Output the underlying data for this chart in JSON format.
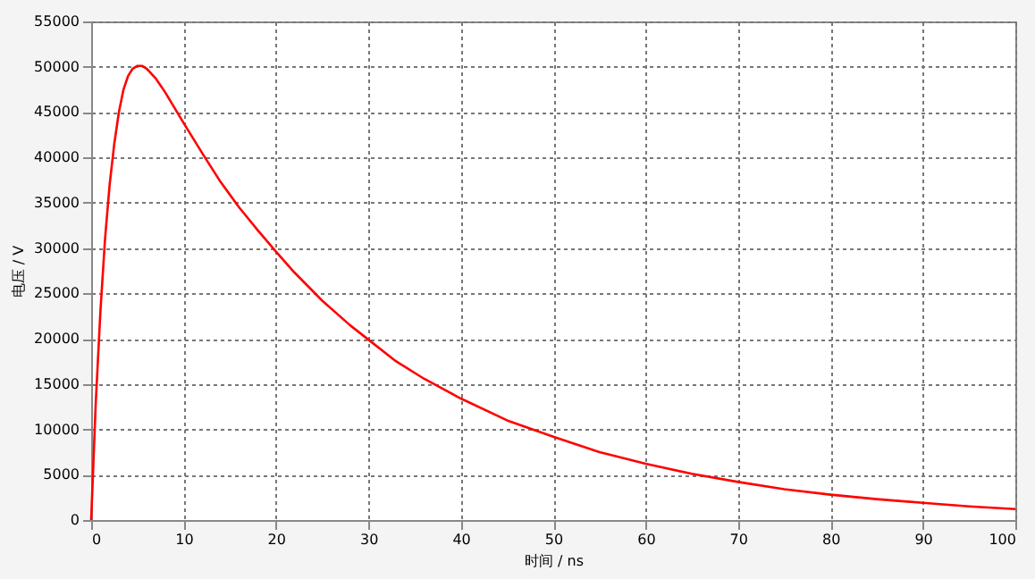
{
  "chart_data": {
    "type": "line",
    "xlabel": "时间 / ns",
    "ylabel": "电压 / V",
    "x": [
      0,
      0.5,
      1,
      1.5,
      2,
      2.5,
      3,
      3.5,
      4,
      4.5,
      5,
      5.5,
      6,
      7,
      8,
      9,
      10,
      12,
      14,
      16,
      18,
      20,
      22,
      25,
      28,
      30,
      33,
      36,
      40,
      45,
      50,
      55,
      60,
      65,
      70,
      75,
      80,
      85,
      90,
      95,
      100
    ],
    "series": [
      {
        "color": "#ff0000",
        "values": [
          0,
          13000,
          23000,
          31000,
          37000,
          41500,
          45000,
          47500,
          49000,
          49800,
          50100,
          50100,
          49800,
          48700,
          47200,
          45500,
          43800,
          40500,
          37300,
          34500,
          32000,
          29600,
          27300,
          24200,
          21500,
          19900,
          17500,
          15600,
          13400,
          11000,
          9200,
          7500,
          6200,
          5100,
          4200,
          3400,
          2800,
          2300,
          1900,
          1500,
          1200
        ]
      }
    ],
    "xlim": [
      0,
      100
    ],
    "xticks": [
      0,
      10,
      20,
      30,
      40,
      50,
      60,
      70,
      80,
      90,
      100
    ],
    "ylim": [
      0,
      55000
    ],
    "yticks": [
      0,
      5000,
      10000,
      15000,
      20000,
      25000,
      30000,
      35000,
      40000,
      45000,
      50000,
      55000
    ],
    "grid": true,
    "marker": "none",
    "line_style": "solid"
  }
}
